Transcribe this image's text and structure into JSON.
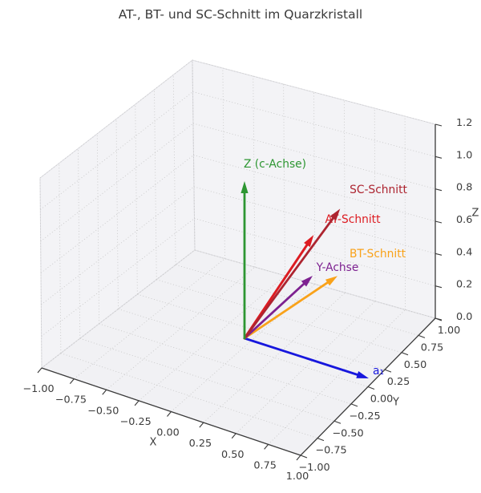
{
  "title": "AT-, BT- und SC-Schnitt im Quarzkristall",
  "chart_data": {
    "type": "3d-vector-plot",
    "title": "AT-, BT- und SC-Schnitt im Quarzkristall",
    "grid": true,
    "axes": {
      "x": {
        "label": "X",
        "range": [
          -1.0,
          1.0
        ],
        "tick_step": 0.25,
        "ticks": [
          "−1.00",
          "−0.75",
          "−0.50",
          "−0.25",
          "0.00",
          "0.25",
          "0.50",
          "0.75",
          "1.00"
        ]
      },
      "y": {
        "label": "Y",
        "range": [
          -1.0,
          1.0
        ],
        "tick_step": 0.25,
        "ticks": [
          "−1.00",
          "−0.75",
          "−0.50",
          "−0.25",
          "0.00",
          "0.25",
          "0.50",
          "0.75",
          "1.00"
        ]
      },
      "z": {
        "label": "Z",
        "range": [
          0.0,
          1.2
        ],
        "tick_step": 0.2,
        "ticks": [
          "0.0",
          "0.2",
          "0.4",
          "0.6",
          "0.8",
          "1.0",
          "1.2"
        ]
      }
    },
    "vectors": [
      {
        "id": "a1",
        "label": "a₁",
        "color": "#1717dd",
        "start": [
          0,
          0,
          0
        ],
        "end": [
          1.0,
          0.0,
          0.0
        ]
      },
      {
        "id": "bt",
        "label": "BT-Schnitt",
        "color": "#f9a21a",
        "start": [
          0,
          0,
          0
        ],
        "end": [
          0.2,
          1.0,
          0.05
        ]
      },
      {
        "id": "y_axis",
        "label": "Y-Achse",
        "color": "#7d2190",
        "start": [
          0,
          0,
          0
        ],
        "end": [
          0.0,
          1.0,
          0.0
        ]
      },
      {
        "id": "at",
        "label": "AT-Schnitt",
        "color": "#dd1c22",
        "start": [
          0,
          0,
          0
        ],
        "end": [
          0.2,
          0.65,
          0.45
        ]
      },
      {
        "id": "sc",
        "label": "SC-Schnitt",
        "color": "#ad2430",
        "start": [
          0,
          0,
          0
        ],
        "end": [
          0.32,
          0.82,
          0.58
        ]
      },
      {
        "id": "z_axis",
        "label": "Z (c-Achse)",
        "color": "#2d9632",
        "start": [
          0,
          0,
          0
        ],
        "end": [
          0.0,
          0.0,
          1.0
        ]
      }
    ]
  }
}
